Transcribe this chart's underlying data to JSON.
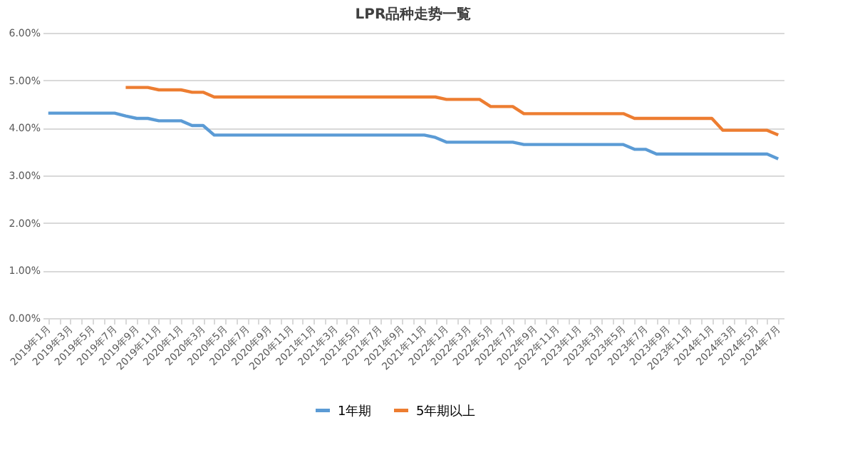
{
  "chart_data": {
    "type": "line",
    "title": "LPR品种走势一覧",
    "categories": [
      "2019年1月",
      null,
      "2019年3月",
      null,
      "2019年5月",
      null,
      "2019年7月",
      null,
      "2019年9月",
      null,
      "2019年11月",
      null,
      "2020年1月",
      null,
      "2020年3月",
      null,
      "2020年5月",
      null,
      "2020年7月",
      null,
      "2020年9月",
      null,
      "2020年11月",
      null,
      "2021年1月",
      null,
      "2021年3月",
      null,
      "2021年5月",
      null,
      "2021年7月",
      null,
      "2021年9月",
      null,
      "2021年11月",
      null,
      "2022年1月",
      null,
      "2022年3月",
      null,
      "2022年5月",
      null,
      "2022年7月",
      null,
      "2022年9月",
      null,
      "2022年11月",
      null,
      "2023年1月",
      null,
      "2023年3月",
      null,
      "2023年5月",
      null,
      "2023年7月",
      null,
      "2023年9月",
      null,
      "2023年11月",
      null,
      "2024年1月",
      null,
      "2024年3月",
      null,
      "2024年5月",
      null,
      "2024年7月"
    ],
    "series": [
      {
        "name": "1年期",
        "color": "#5b9bd5",
        "values": [
          4.31,
          4.31,
          4.31,
          4.31,
          4.31,
          4.31,
          4.31,
          4.25,
          4.2,
          4.2,
          4.15,
          4.15,
          4.15,
          4.05,
          4.05,
          3.85,
          3.85,
          3.85,
          3.85,
          3.85,
          3.85,
          3.85,
          3.85,
          3.85,
          3.85,
          3.85,
          3.85,
          3.85,
          3.85,
          3.85,
          3.85,
          3.85,
          3.85,
          3.85,
          3.85,
          3.8,
          3.7,
          3.7,
          3.7,
          3.7,
          3.7,
          3.7,
          3.7,
          3.65,
          3.65,
          3.65,
          3.65,
          3.65,
          3.65,
          3.65,
          3.65,
          3.65,
          3.65,
          3.55,
          3.55,
          3.45,
          3.45,
          3.45,
          3.45,
          3.45,
          3.45,
          3.45,
          3.45,
          3.45,
          3.45,
          3.45,
          3.35
        ]
      },
      {
        "name": "5年期以上",
        "color": "#ed7d31",
        "values": [
          null,
          null,
          null,
          null,
          null,
          null,
          null,
          4.85,
          4.85,
          4.85,
          4.8,
          4.8,
          4.8,
          4.75,
          4.75,
          4.65,
          4.65,
          4.65,
          4.65,
          4.65,
          4.65,
          4.65,
          4.65,
          4.65,
          4.65,
          4.65,
          4.65,
          4.65,
          4.65,
          4.65,
          4.65,
          4.65,
          4.65,
          4.65,
          4.65,
          4.65,
          4.6,
          4.6,
          4.6,
          4.6,
          4.45,
          4.45,
          4.45,
          4.3,
          4.3,
          4.3,
          4.3,
          4.3,
          4.3,
          4.3,
          4.3,
          4.3,
          4.3,
          4.2,
          4.2,
          4.2,
          4.2,
          4.2,
          4.2,
          4.2,
          4.2,
          3.95,
          3.95,
          3.95,
          3.95,
          3.95,
          3.85
        ]
      }
    ],
    "ylim": [
      0,
      6
    ],
    "yticks": [
      {
        "value": 0,
        "label": "0.00%"
      },
      {
        "value": 1,
        "label": "1.00%"
      },
      {
        "value": 2,
        "label": "2.00%"
      },
      {
        "value": 3,
        "label": "3.00%"
      },
      {
        "value": 4,
        "label": "4.00%"
      },
      {
        "value": 5,
        "label": "5.00%"
      },
      {
        "value": 6,
        "label": "6.00%"
      }
    ],
    "grid": "y",
    "legend": "bottom",
    "line_style": "solid"
  }
}
